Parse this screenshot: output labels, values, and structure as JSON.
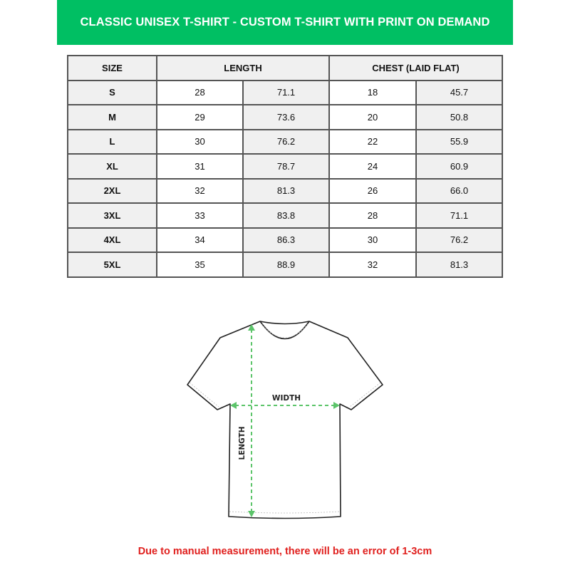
{
  "title": "CLASSIC UNISEX T-SHIRT - CUSTOM T-SHIRT WITH PRINT ON DEMAND",
  "brand_color": "#00bf63",
  "table": {
    "headers": {
      "size": "SIZE",
      "length": "LENGTH",
      "chest": "CHEST (LAID FLAT)"
    },
    "rows": [
      {
        "size": "S",
        "length_in": "28",
        "length_cm": "71.1",
        "chest_in": "18",
        "chest_cm": "45.7"
      },
      {
        "size": "M",
        "length_in": "29",
        "length_cm": "73.6",
        "chest_in": "20",
        "chest_cm": "50.8"
      },
      {
        "size": "L",
        "length_in": "30",
        "length_cm": "76.2",
        "chest_in": "22",
        "chest_cm": "55.9"
      },
      {
        "size": "XL",
        "length_in": "31",
        "length_cm": "78.7",
        "chest_in": "24",
        "chest_cm": "60.9"
      },
      {
        "size": "2XL",
        "length_in": "32",
        "length_cm": "81.3",
        "chest_in": "26",
        "chest_cm": "66.0"
      },
      {
        "size": "3XL",
        "length_in": "33",
        "length_cm": "83.8",
        "chest_in": "28",
        "chest_cm": "71.1"
      },
      {
        "size": "4XL",
        "length_in": "34",
        "length_cm": "86.3",
        "chest_in": "30",
        "chest_cm": "76.2"
      },
      {
        "size": "5XL",
        "length_in": "35",
        "length_cm": "88.9",
        "chest_in": "32",
        "chest_cm": "81.3"
      }
    ]
  },
  "diagram": {
    "width_label": "WIDTH",
    "length_label": "LENGTH",
    "arrow_color": "#5cc46a"
  },
  "note": "Due to manual measurement, there will be an error of 1-3cm",
  "note_color": "#e0201e"
}
